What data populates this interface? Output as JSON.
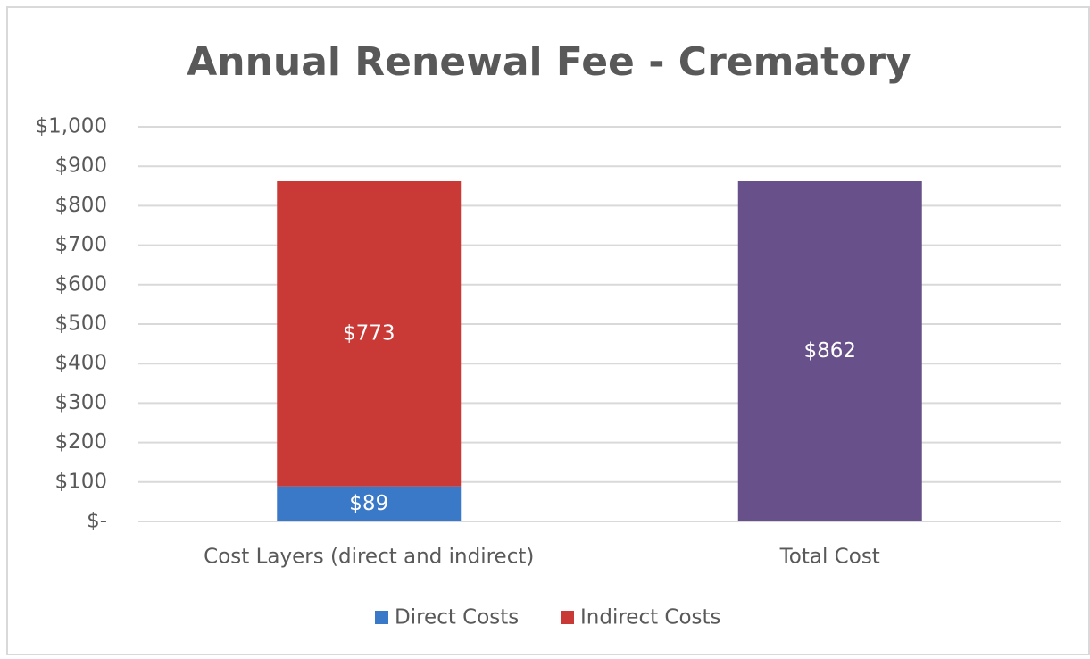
{
  "chart_data": {
    "type": "stacked_bar",
    "title": "Annual Renewal Fee - Crematory",
    "categories": [
      "Cost Layers (direct and indirect)",
      "Total Cost"
    ],
    "series": [
      {
        "name": "Direct Costs",
        "color": "#3a78c8",
        "values": [
          89,
          null
        ],
        "value_labels": [
          "$89",
          null
        ]
      },
      {
        "name": "Indirect Costs",
        "color": "#c93a36",
        "values": [
          773,
          null
        ],
        "value_labels": [
          "$773",
          null
        ]
      }
    ],
    "totals": {
      "color": "#68508a",
      "values": [
        null,
        862
      ],
      "value_labels": [
        null,
        "$862"
      ]
    },
    "ylim": [
      0,
      1000
    ],
    "yticks": [
      {
        "value": 0,
        "label": "$-"
      },
      {
        "value": 100,
        "label": "$100"
      },
      {
        "value": 200,
        "label": "$200"
      },
      {
        "value": 300,
        "label": "$300"
      },
      {
        "value": 400,
        "label": "$400"
      },
      {
        "value": 500,
        "label": "$500"
      },
      {
        "value": 600,
        "label": "$600"
      },
      {
        "value": 700,
        "label": "$700"
      },
      {
        "value": 800,
        "label": "$800"
      },
      {
        "value": 900,
        "label": "$900"
      },
      {
        "value": 1000,
        "label": "$1,000"
      }
    ],
    "grid": true,
    "legend": "bottom"
  }
}
